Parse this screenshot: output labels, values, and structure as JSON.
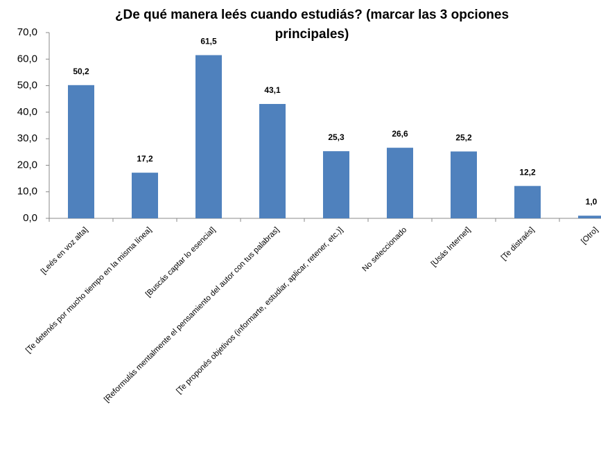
{
  "chart_data": {
    "type": "bar",
    "title": "¿De qué manera leés cuando estudiás? (marcar las 3 opciones principales)",
    "categories": [
      "[Leés en voz alta]",
      "[Te detenés por mucho tiempo en la misma línea]",
      "[Buscás captar lo esencial]",
      "[Reformulás mentalmente el pensamiento del autor con tus palabras]",
      "[Te proponés objetivos (informarte, estudiar, aplicar, retener, etc.)]",
      "No seleccionado",
      "[Usás Internet]",
      "[Te distraés]",
      "[Otro]"
    ],
    "values": [
      50.2,
      17.2,
      61.5,
      43.1,
      25.3,
      26.6,
      25.2,
      12.2,
      1.0
    ],
    "value_labels": [
      "50,2",
      "17,2",
      "61,5",
      "43,1",
      "25,3",
      "26,6",
      "25,2",
      "12,2",
      "1,0"
    ],
    "color": "#4f81bd",
    "ylim": [
      0,
      70
    ],
    "yticks": [
      {
        "value": 0,
        "label": "0,0"
      },
      {
        "value": 10,
        "label": "10,0"
      },
      {
        "value": 20,
        "label": "20,0"
      },
      {
        "value": 30,
        "label": "30,0"
      },
      {
        "value": 40,
        "label": "40,0"
      },
      {
        "value": 50,
        "label": "50,0"
      },
      {
        "value": 60,
        "label": "60,0"
      },
      {
        "value": 70,
        "label": "70,0"
      }
    ],
    "grid": false
  }
}
